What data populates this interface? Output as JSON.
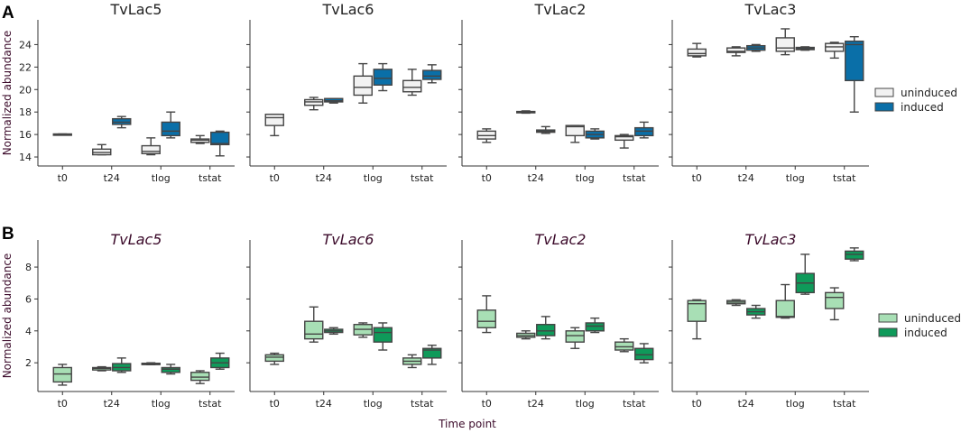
{
  "figure": {
    "panel_a_letter": "A",
    "panel_b_letter": "B",
    "xlabel": "Time point"
  },
  "chart_data": [
    {
      "type": "box",
      "panel": "A",
      "ylabel": "Normalized abundance",
      "ylim": [
        13.2,
        26.2
      ],
      "yticks": [
        14,
        16,
        18,
        20,
        22,
        24
      ],
      "categories": [
        "t0",
        "t24",
        "tlog",
        "tstat"
      ],
      "legend": [
        {
          "name": "uninduced",
          "color": "#f2f2f2"
        },
        {
          "name": "induced",
          "color": "#0a6fa8"
        }
      ],
      "subplots": [
        {
          "title": "TvLac5",
          "italic": false,
          "boxes": {
            "uninduced": [
              {
                "min": 16.0,
                "q1": 16.0,
                "median": 16.0,
                "q3": 16.05,
                "max": 16.05
              },
              {
                "min": 14.2,
                "q1": 14.2,
                "median": 14.4,
                "q3": 14.7,
                "max": 15.1
              },
              {
                "min": 14.2,
                "q1": 14.3,
                "median": 14.5,
                "q3": 15.0,
                "max": 15.7
              },
              {
                "min": 15.2,
                "q1": 15.3,
                "median": 15.5,
                "q3": 15.6,
                "max": 15.9
              }
            ],
            "induced": [
              null,
              {
                "min": 16.6,
                "q1": 16.9,
                "median": 17.1,
                "q3": 17.4,
                "max": 17.6
              },
              {
                "min": 15.7,
                "q1": 15.9,
                "median": 16.3,
                "q3": 17.1,
                "max": 18.0
              },
              {
                "min": 14.1,
                "q1": 15.1,
                "median": 15.2,
                "q3": 16.2,
                "max": 16.3
              }
            ]
          }
        },
        {
          "title": "TvLac6",
          "italic": false,
          "boxes": {
            "uninduced": [
              {
                "min": 15.9,
                "q1": 16.8,
                "median": 17.5,
                "q3": 17.8,
                "max": 17.8
              },
              {
                "min": 18.2,
                "q1": 18.6,
                "median": 18.9,
                "q3": 19.1,
                "max": 19.3
              },
              {
                "min": 18.8,
                "q1": 19.5,
                "median": 20.2,
                "q3": 21.2,
                "max": 22.3
              },
              {
                "min": 19.5,
                "q1": 19.8,
                "median": 20.2,
                "q3": 20.8,
                "max": 21.8
              }
            ],
            "induced": [
              null,
              {
                "min": 18.8,
                "q1": 18.9,
                "median": 19.0,
                "q3": 19.2,
                "max": 19.2
              },
              {
                "min": 19.9,
                "q1": 20.4,
                "median": 21.0,
                "q3": 21.8,
                "max": 22.3
              },
              {
                "min": 20.6,
                "q1": 20.9,
                "median": 21.2,
                "q3": 21.7,
                "max": 22.2
              }
            ]
          }
        },
        {
          "title": "TvLac2",
          "italic": false,
          "boxes": {
            "uninduced": [
              {
                "min": 15.3,
                "q1": 15.6,
                "median": 15.9,
                "q3": 16.3,
                "max": 16.5
              },
              {
                "min": 17.9,
                "q1": 17.95,
                "median": 18.0,
                "q3": 18.05,
                "max": 18.1
              },
              {
                "min": 15.3,
                "q1": 15.9,
                "median": 16.7,
                "q3": 16.8,
                "max": 16.8
              },
              {
                "min": 14.8,
                "q1": 15.5,
                "median": 15.8,
                "q3": 15.9,
                "max": 16.0
              }
            ],
            "induced": [
              null,
              {
                "min": 16.1,
                "q1": 16.2,
                "median": 16.3,
                "q3": 16.4,
                "max": 16.7
              },
              {
                "min": 15.6,
                "q1": 15.7,
                "median": 16.0,
                "q3": 16.3,
                "max": 16.5
              },
              {
                "min": 15.7,
                "q1": 15.9,
                "median": 16.3,
                "q3": 16.6,
                "max": 17.1
              }
            ]
          }
        },
        {
          "title": "TvLac3",
          "italic": false,
          "boxes": {
            "uninduced": [
              {
                "min": 22.9,
                "q1": 23.0,
                "median": 23.2,
                "q3": 23.6,
                "max": 24.1
              },
              {
                "min": 23.0,
                "q1": 23.3,
                "median": 23.4,
                "q3": 23.7,
                "max": 23.8
              },
              {
                "min": 23.1,
                "q1": 23.4,
                "median": 23.7,
                "q3": 24.6,
                "max": 25.4
              },
              {
                "min": 22.8,
                "q1": 23.4,
                "median": 23.8,
                "q3": 24.1,
                "max": 24.2
              }
            ],
            "induced": [
              null,
              {
                "min": 23.4,
                "q1": 23.5,
                "median": 23.7,
                "q3": 23.9,
                "max": 24.0
              },
              {
                "min": 23.5,
                "q1": 23.55,
                "median": 23.65,
                "q3": 23.75,
                "max": 23.8
              },
              {
                "min": 18.0,
                "q1": 20.8,
                "median": 24.0,
                "q3": 24.3,
                "max": 24.7
              }
            ]
          }
        }
      ]
    },
    {
      "type": "box",
      "panel": "B",
      "ylabel": "Normalized abundance",
      "ylim": [
        0.2,
        9.7
      ],
      "yticks": [
        2,
        4,
        6,
        8
      ],
      "categories": [
        "t0",
        "t24",
        "tlog",
        "tstat"
      ],
      "legend": [
        {
          "name": "uninduced",
          "color": "#a8dfb5"
        },
        {
          "name": "induced",
          "color": "#0f9a5a"
        }
      ],
      "subplots": [
        {
          "title": "TvLac5",
          "italic": true,
          "boxes": {
            "uninduced": [
              {
                "min": 0.6,
                "q1": 0.8,
                "median": 1.3,
                "q3": 1.7,
                "max": 1.9
              },
              {
                "min": 1.5,
                "q1": 1.55,
                "median": 1.65,
                "q3": 1.7,
                "max": 1.75
              },
              {
                "min": 1.88,
                "q1": 1.9,
                "median": 1.93,
                "q3": 1.97,
                "max": 2.0
              },
              {
                "min": 0.7,
                "q1": 0.9,
                "median": 1.1,
                "q3": 1.4,
                "max": 1.5
              }
            ],
            "induced": [
              null,
              {
                "min": 1.4,
                "q1": 1.5,
                "median": 1.7,
                "q3": 1.95,
                "max": 2.3
              },
              {
                "min": 1.3,
                "q1": 1.4,
                "median": 1.6,
                "q3": 1.7,
                "max": 1.9
              },
              {
                "min": 1.6,
                "q1": 1.7,
                "median": 2.0,
                "q3": 2.3,
                "max": 2.6
              }
            ]
          }
        },
        {
          "title": "TvLac6",
          "italic": true,
          "boxes": {
            "uninduced": [
              {
                "min": 1.9,
                "q1": 2.1,
                "median": 2.35,
                "q3": 2.5,
                "max": 2.6
              },
              {
                "min": 3.3,
                "q1": 3.5,
                "median": 3.8,
                "q3": 4.6,
                "max": 5.5
              },
              {
                "min": 3.6,
                "q1": 3.75,
                "median": 4.1,
                "q3": 4.4,
                "max": 4.5
              },
              {
                "min": 1.7,
                "q1": 1.9,
                "median": 2.1,
                "q3": 2.3,
                "max": 2.5
              }
            ],
            "induced": [
              null,
              {
                "min": 3.8,
                "q1": 3.9,
                "median": 4.0,
                "q3": 4.1,
                "max": 4.2
              },
              {
                "min": 2.8,
                "q1": 3.3,
                "median": 3.9,
                "q3": 4.2,
                "max": 4.5
              },
              {
                "min": 1.9,
                "q1": 2.3,
                "median": 2.8,
                "q3": 2.9,
                "max": 3.1
              }
            ]
          }
        },
        {
          "title": "TvLac2",
          "italic": true,
          "boxes": {
            "uninduced": [
              {
                "min": 3.9,
                "q1": 4.2,
                "median": 4.6,
                "q3": 5.3,
                "max": 6.2
              },
              {
                "min": 3.5,
                "q1": 3.6,
                "median": 3.7,
                "q3": 3.85,
                "max": 4.0
              },
              {
                "min": 2.9,
                "q1": 3.3,
                "median": 3.7,
                "q3": 4.0,
                "max": 4.2
              },
              {
                "min": 2.7,
                "q1": 2.8,
                "median": 3.0,
                "q3": 3.3,
                "max": 3.5
              }
            ],
            "induced": [
              null,
              {
                "min": 3.5,
                "q1": 3.7,
                "median": 4.0,
                "q3": 4.4,
                "max": 4.9
              },
              {
                "min": 3.9,
                "q1": 4.0,
                "median": 4.3,
                "q3": 4.5,
                "max": 4.8
              },
              {
                "min": 2.0,
                "q1": 2.2,
                "median": 2.5,
                "q3": 2.9,
                "max": 3.2
              }
            ]
          }
        },
        {
          "title": "TvLac3",
          "italic": true,
          "boxes": {
            "uninduced": [
              {
                "min": 3.5,
                "q1": 4.6,
                "median": 5.7,
                "q3": 5.9,
                "max": 5.95
              },
              {
                "min": 5.6,
                "q1": 5.7,
                "median": 5.8,
                "q3": 5.9,
                "max": 5.95
              },
              {
                "min": 4.8,
                "q1": 4.85,
                "median": 4.9,
                "q3": 5.9,
                "max": 6.9
              },
              {
                "min": 4.7,
                "q1": 5.4,
                "median": 6.1,
                "q3": 6.4,
                "max": 6.7
              }
            ],
            "induced": [
              null,
              {
                "min": 4.8,
                "q1": 5.0,
                "median": 5.2,
                "q3": 5.4,
                "max": 5.6
              },
              {
                "min": 6.3,
                "q1": 6.4,
                "median": 7.0,
                "q3": 7.6,
                "max": 8.8
              },
              {
                "min": 8.4,
                "q1": 8.5,
                "median": 8.8,
                "q3": 9.0,
                "max": 9.2
              }
            ]
          }
        }
      ]
    }
  ]
}
